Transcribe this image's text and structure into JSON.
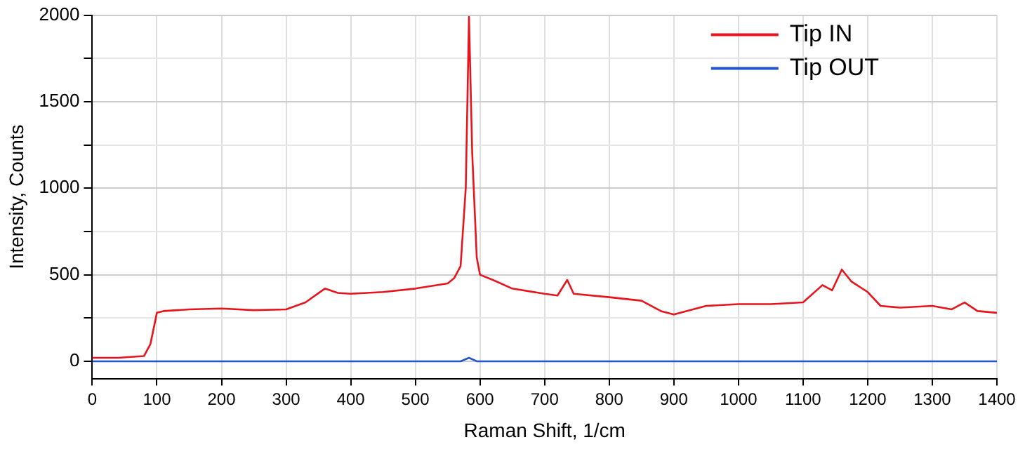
{
  "chart_data": {
    "type": "line",
    "xlabel": "Raman Shift, 1/cm",
    "ylabel": "Intensity, Counts",
    "xlim": [
      0,
      1400
    ],
    "xticks": [
      0,
      100,
      200,
      300,
      400,
      500,
      600,
      700,
      800,
      900,
      1000,
      1100,
      1200,
      1300,
      1400
    ],
    "ylim": [
      -100,
      2000
    ],
    "yticks": [
      0,
      {
        "value": 250,
        "label": null
      },
      500,
      {
        "value": 750,
        "label": null
      },
      1000,
      {
        "value": 1250,
        "label": null
      },
      1500,
      {
        "value": 1750,
        "label": null
      },
      2000
    ],
    "grid": true,
    "legend": "top right",
    "marker": "none",
    "line_style": "solid",
    "series": [
      {
        "name": "Tip IN",
        "color": "#e8141c",
        "x": [
          0,
          40,
          80,
          90,
          100,
          110,
          150,
          200,
          250,
          300,
          330,
          360,
          380,
          400,
          450,
          500,
          550,
          560,
          570,
          578,
          583,
          588,
          595,
          600,
          620,
          650,
          700,
          720,
          735,
          745,
          800,
          850,
          880,
          900,
          950,
          1000,
          1050,
          1100,
          1130,
          1145,
          1160,
          1175,
          1200,
          1220,
          1250,
          1300,
          1330,
          1350,
          1370,
          1400
        ],
        "values": [
          20,
          20,
          30,
          100,
          280,
          290,
          300,
          305,
          295,
          300,
          340,
          420,
          395,
          390,
          400,
          420,
          450,
          480,
          550,
          1000,
          1990,
          1200,
          600,
          500,
          470,
          420,
          390,
          380,
          470,
          390,
          370,
          350,
          290,
          270,
          320,
          330,
          330,
          340,
          440,
          410,
          530,
          460,
          400,
          320,
          310,
          320,
          300,
          340,
          290,
          280
        ]
      },
      {
        "name": "Tip OUT",
        "color": "#2255cc",
        "x": [
          0,
          200,
          400,
          570,
          583,
          595,
          800,
          1000,
          1200,
          1400
        ],
        "values": [
          0,
          0,
          0,
          0,
          20,
          0,
          0,
          0,
          0,
          0
        ]
      }
    ]
  }
}
